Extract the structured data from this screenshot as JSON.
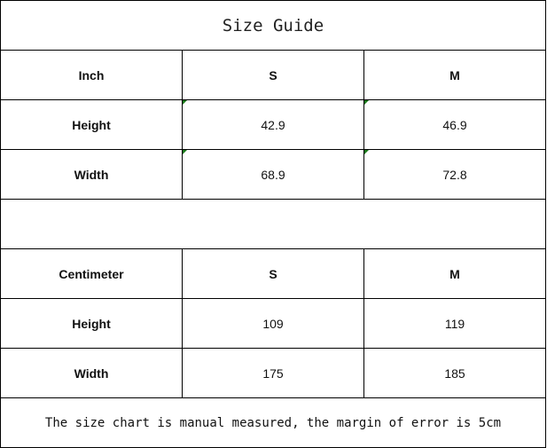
{
  "title": "Size Guide",
  "inch_table": {
    "header": [
      "Inch",
      "S",
      "M"
    ],
    "rows": [
      {
        "label": "Height",
        "S": "42.9",
        "M": "46.9"
      },
      {
        "label": "Width",
        "S": "68.9",
        "M": "72.8"
      }
    ]
  },
  "cm_table": {
    "header": [
      "Centimeter",
      "S",
      "M"
    ],
    "rows": [
      {
        "label": "Height",
        "S": "109",
        "M": "119"
      },
      {
        "label": "Width",
        "S": "175",
        "M": "185"
      }
    ]
  },
  "note": "The size chart is manual measured, the margin of error is 5cm",
  "colors": {
    "border": "#000000",
    "cell_marker": "#1a7a1a"
  }
}
